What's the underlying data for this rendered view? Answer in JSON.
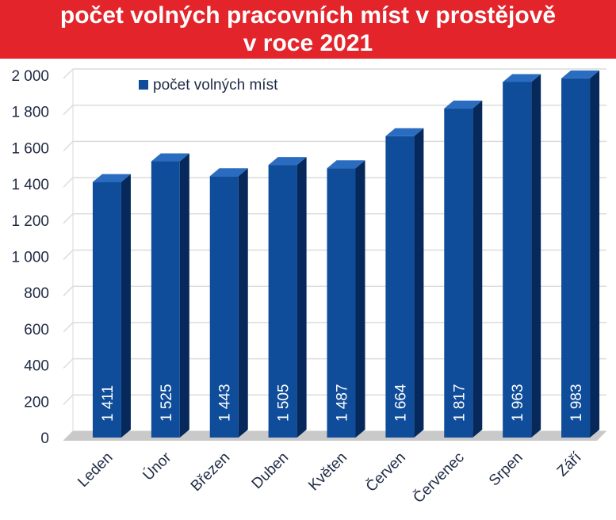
{
  "chart_data": {
    "type": "bar",
    "title_line1": "počet volných pracovních míst v prostějově",
    "title_line2": "v roce 2021",
    "categories": [
      "Leden",
      "Únor",
      "Březen",
      "Duben",
      "Květen",
      "Červen",
      "Červenec",
      "Srpen",
      "Září"
    ],
    "series": [
      {
        "name": "počet volných míst",
        "values": [
          1411,
          1525,
          1443,
          1505,
          1487,
          1664,
          1817,
          1963,
          1983
        ]
      }
    ],
    "data_labels": [
      "1 411",
      "1 525",
      "1 443",
      "1 505",
      "1 487",
      "1 664",
      "1 817",
      "1 963",
      "1 983"
    ],
    "yticks": [
      0,
      200,
      400,
      600,
      800,
      1000,
      1200,
      1400,
      1600,
      1800,
      2000
    ],
    "ytick_labels": [
      "0",
      "200",
      "400",
      "600",
      "800",
      "1 000",
      "1 200",
      "1 400",
      "1 600",
      "1 800",
      "2 000"
    ],
    "ylim": [
      0,
      2000
    ],
    "grid": true,
    "legend_position": "top-left",
    "colors": {
      "bar": "#0f4c99",
      "bar_side": "#06285a",
      "bar_top": "#2a6cc0",
      "header": "#e3242b"
    }
  }
}
